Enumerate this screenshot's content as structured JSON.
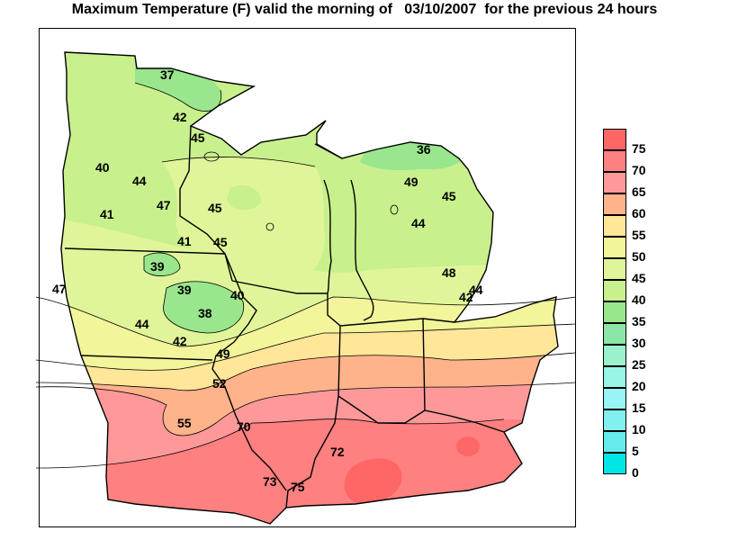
{
  "title": "Maximum Temperature (F) valid the morning of   03/10/2007  for the previous 24 hours",
  "legend": {
    "levels": [
      {
        "label": "75",
        "color": "#ff6666"
      },
      {
        "label": "70",
        "color": "#ff8080"
      },
      {
        "label": "65",
        "color": "#ff9999"
      },
      {
        "label": "60",
        "color": "#ffb38a"
      },
      {
        "label": "55",
        "color": "#ffe699"
      },
      {
        "label": "50",
        "color": "#f2f599"
      },
      {
        "label": "45",
        "color": "#e0f599"
      },
      {
        "label": "40",
        "color": "#c8f08c"
      },
      {
        "label": "35",
        "color": "#99e68c"
      },
      {
        "label": "30",
        "color": "#8ce6a8"
      },
      {
        "label": "25",
        "color": "#99f2cc"
      },
      {
        "label": "20",
        "color": "#99f5e6"
      },
      {
        "label": "15",
        "color": "#99f5f5"
      },
      {
        "label": "10",
        "color": "#80f0f0"
      },
      {
        "label": "5",
        "color": "#66ebeb"
      },
      {
        "label": "0",
        "color": "#00e6e6"
      }
    ]
  },
  "stations": [
    {
      "value": "37"
    },
    {
      "value": "42"
    },
    {
      "value": "45"
    },
    {
      "value": "40"
    },
    {
      "value": "44"
    },
    {
      "value": "47"
    },
    {
      "value": "41"
    },
    {
      "value": "45"
    },
    {
      "value": "41"
    },
    {
      "value": "45"
    },
    {
      "value": "39"
    },
    {
      "value": "39"
    },
    {
      "value": "40"
    },
    {
      "value": "38"
    },
    {
      "value": "47"
    },
    {
      "value": "44"
    },
    {
      "value": "42"
    },
    {
      "value": "49"
    },
    {
      "value": "52"
    },
    {
      "value": "55"
    },
    {
      "value": "70"
    },
    {
      "value": "72"
    },
    {
      "value": "73"
    },
    {
      "value": "75"
    },
    {
      "value": "36"
    },
    {
      "value": "49"
    },
    {
      "value": "45"
    },
    {
      "value": "44"
    },
    {
      "value": "48"
    },
    {
      "value": "42"
    },
    {
      "value": "44"
    }
  ]
}
